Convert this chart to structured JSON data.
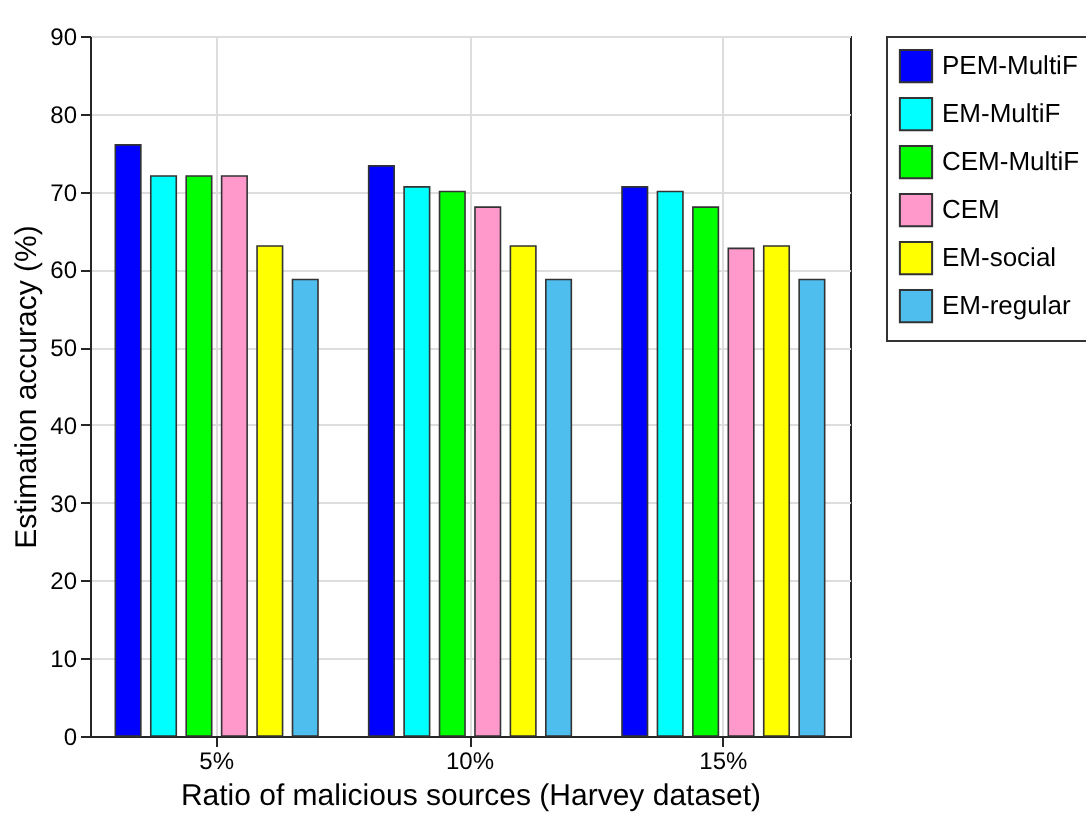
{
  "chart_data": {
    "type": "bar",
    "xlabel": "Ratio of malicious sources (Harvey dataset)",
    "ylabel": "Estimation accuracy (%)",
    "categories": [
      "5%",
      "10%",
      "15%"
    ],
    "series": [
      {
        "name": "PEM-MultiF",
        "color": "#0000ff",
        "values": [
          76,
          73.3,
          70.6
        ]
      },
      {
        "name": "EM-MultiF",
        "color": "#00ffff",
        "values": [
          72,
          70.6,
          70
        ]
      },
      {
        "name": "CEM-MultiF",
        "color": "#00ff00",
        "values": [
          72,
          70,
          68
        ]
      },
      {
        "name": "CEM",
        "color": "#ff99cc",
        "values": [
          72,
          68,
          62.7
        ]
      },
      {
        "name": "EM-social",
        "color": "#ffff00",
        "values": [
          63,
          63,
          63
        ]
      },
      {
        "name": "EM-regular",
        "color": "#4dbeee",
        "values": [
          58.7,
          58.7,
          58.7
        ]
      }
    ],
    "ylim": [
      0,
      90
    ],
    "yticks": [
      0,
      10,
      20,
      30,
      40,
      50,
      60,
      70,
      80,
      90
    ],
    "grid": true,
    "legend": "right"
  }
}
